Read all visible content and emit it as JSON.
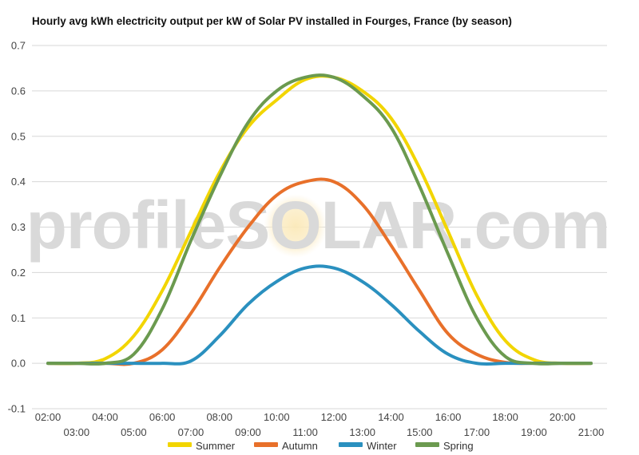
{
  "chart_data": {
    "type": "line",
    "title": "Hourly avg kWh electricity output per kW of Solar PV installed in Fourges, France (by season)",
    "watermark": "profileSOLAR.com",
    "xlabel": "",
    "ylabel": "",
    "ylim": [
      -0.1,
      0.7
    ],
    "yticks": [
      "-0.1",
      "0.0",
      "0.1",
      "0.2",
      "0.3",
      "0.4",
      "0.5",
      "0.6",
      "0.7"
    ],
    "xticks_upper": [
      "02:00",
      "04:00",
      "06:00",
      "08:00",
      "10:00",
      "12:00",
      "14:00",
      "16:00",
      "18:00",
      "20:00"
    ],
    "xticks_lower": [
      "03:00",
      "05:00",
      "07:00",
      "09:00",
      "11:00",
      "13:00",
      "15:00",
      "17:00",
      "19:00",
      "21:00"
    ],
    "x": [
      "02:00",
      "03:00",
      "04:00",
      "05:00",
      "06:00",
      "07:00",
      "08:00",
      "09:00",
      "10:00",
      "11:00",
      "12:00",
      "13:00",
      "14:00",
      "15:00",
      "16:00",
      "17:00",
      "18:00",
      "19:00",
      "20:00",
      "21:00"
    ],
    "grid": true,
    "legend": "bottom",
    "series": [
      {
        "name": "Summer",
        "color": "#f2d500",
        "values": [
          0.0,
          0.0,
          0.01,
          0.06,
          0.16,
          0.29,
          0.42,
          0.52,
          0.58,
          0.625,
          0.63,
          0.6,
          0.54,
          0.43,
          0.29,
          0.15,
          0.05,
          0.008,
          0.0,
          0.0
        ]
      },
      {
        "name": "Autumn",
        "color": "#e8702a",
        "values": [
          0.0,
          0.0,
          0.0,
          0.0,
          0.03,
          0.11,
          0.21,
          0.3,
          0.37,
          0.4,
          0.4,
          0.35,
          0.26,
          0.16,
          0.065,
          0.02,
          0.002,
          0.0,
          0.0,
          0.0
        ]
      },
      {
        "name": "Winter",
        "color": "#2a90bf",
        "values": [
          0.0,
          0.0,
          0.0,
          0.0,
          0.0,
          0.005,
          0.06,
          0.13,
          0.18,
          0.21,
          0.21,
          0.18,
          0.13,
          0.07,
          0.02,
          0.0,
          0.0,
          0.0,
          0.0,
          0.0
        ]
      },
      {
        "name": "Spring",
        "color": "#6b9a4f",
        "values": [
          0.0,
          0.0,
          0.0,
          0.02,
          0.12,
          0.27,
          0.41,
          0.53,
          0.6,
          0.63,
          0.63,
          0.59,
          0.52,
          0.39,
          0.24,
          0.1,
          0.015,
          0.0,
          0.0,
          0.0
        ]
      }
    ]
  }
}
